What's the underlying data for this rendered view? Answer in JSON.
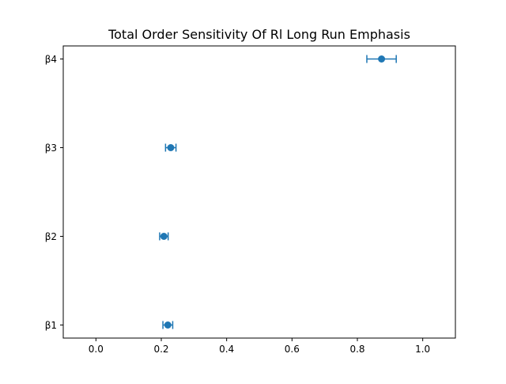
{
  "chart_data": {
    "type": "scatter",
    "title": "Total Order Sensitivity Of Rl Long Run Emphasis",
    "xlabel": "",
    "ylabel": "",
    "xlim": [
      -0.1,
      1.1
    ],
    "xticks": [
      0.0,
      0.2,
      0.4,
      0.6,
      0.8,
      1.0
    ],
    "xtick_labels": [
      "0.0",
      "0.2",
      "0.4",
      "0.6",
      "0.8",
      "1.0"
    ],
    "categories": [
      "β1",
      "β2",
      "β3",
      "β4"
    ],
    "values": [
      0.22,
      0.208,
      0.229,
      0.874
    ],
    "errors": [
      0.015,
      0.013,
      0.016,
      0.045
    ],
    "grid": false,
    "legend": "none",
    "color": "#1f77b4"
  }
}
